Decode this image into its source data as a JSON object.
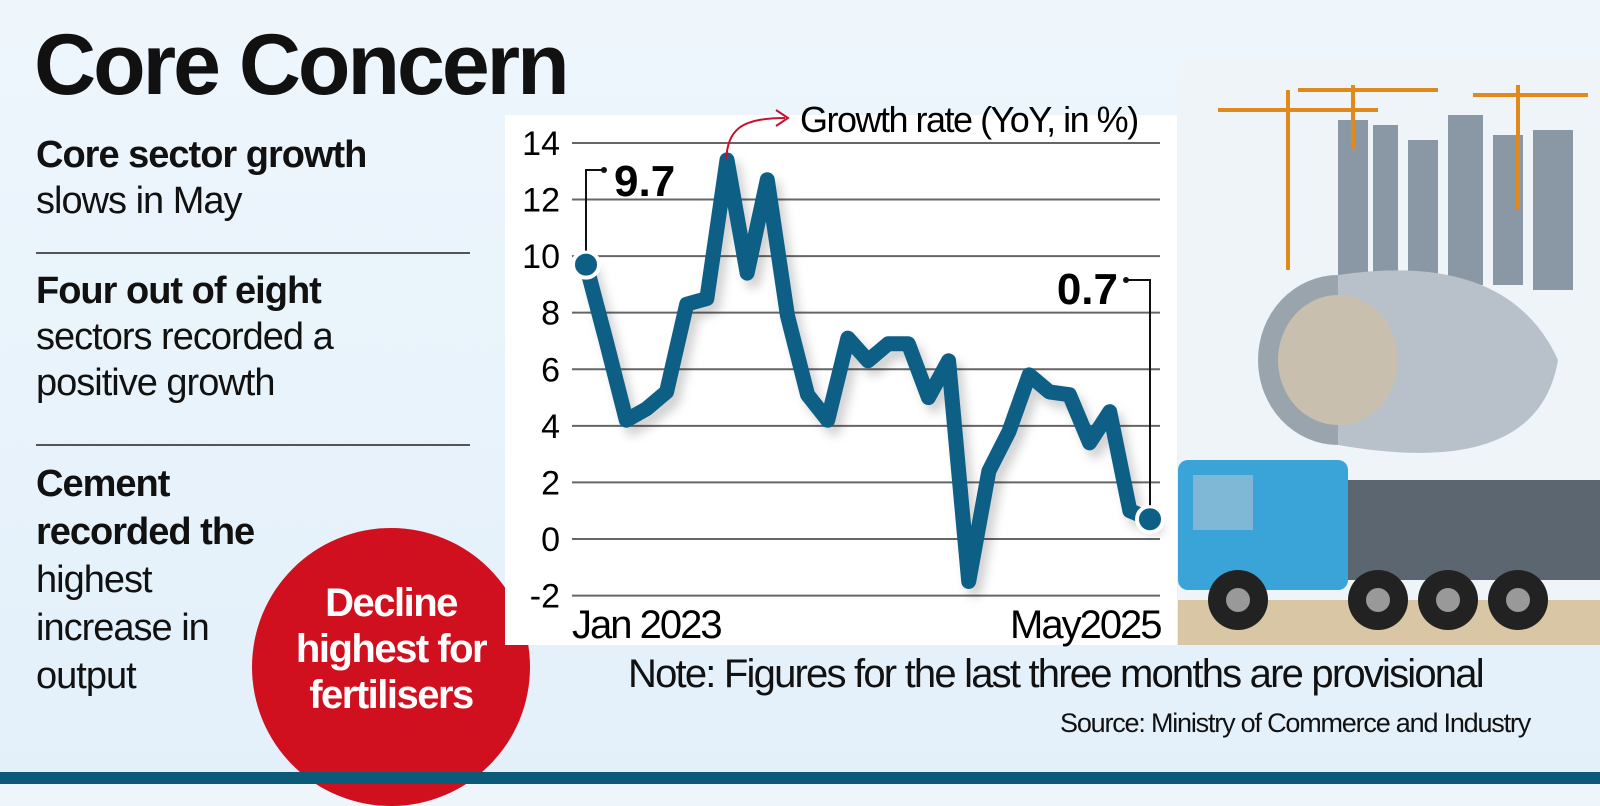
{
  "title": "Core Concern",
  "points": [
    {
      "bold": "Core sector growth",
      "rest": "slows in May"
    },
    {
      "bold": "Four out of eight",
      "rest": "sectors recorded a positive growth"
    },
    {
      "bold": "Cement recorded the",
      "rest": "highest increase in output"
    }
  ],
  "callout": "Decline highest for fertilisers",
  "note": "Note: Figures for the last three months are provisional",
  "source": "Source: Ministry of Commerce and Industry",
  "colors": {
    "line": "#0e5f86",
    "accent": "#d0101e",
    "footer": "#0b5a78"
  },
  "chart_data": {
    "type": "line",
    "legend": "Growth rate (YoY, in %)",
    "x": [
      "Jan 2023",
      "Feb 2023",
      "Mar 2023",
      "Apr 2023",
      "May 2023",
      "Jun 2023",
      "Jul 2023",
      "Aug 2023",
      "Sep 2023",
      "Oct 2023",
      "Nov 2023",
      "Dec 2023",
      "Jan 2024",
      "Feb 2024",
      "Mar 2024",
      "Apr 2024",
      "May 2024",
      "Jun 2024",
      "Jul 2024",
      "Aug 2024",
      "Sep 2024",
      "Oct 2024",
      "Nov 2024",
      "Dec 2024",
      "Jan 2025",
      "Feb 2025",
      "Mar 2025",
      "Apr 2025",
      "May 2025"
    ],
    "xtick_labels": [
      "Jan 2023",
      "May2025"
    ],
    "values": [
      9.7,
      7.0,
      4.2,
      4.6,
      5.2,
      8.3,
      8.5,
      13.4,
      9.4,
      12.7,
      7.9,
      5.1,
      4.2,
      7.1,
      6.3,
      6.9,
      6.9,
      5.0,
      6.3,
      -1.5,
      2.4,
      3.8,
      5.8,
      5.2,
      5.1,
      3.4,
      4.5,
      1.0,
      0.7
    ],
    "annotations": [
      {
        "x": "Jan 2023",
        "label": "9.7"
      },
      {
        "x": "May 2025",
        "label": "0.7"
      }
    ],
    "yticks": [
      14,
      12,
      10,
      8,
      6,
      4,
      2,
      0,
      -2
    ],
    "ylim": [
      -2,
      14
    ],
    "grid": true
  }
}
